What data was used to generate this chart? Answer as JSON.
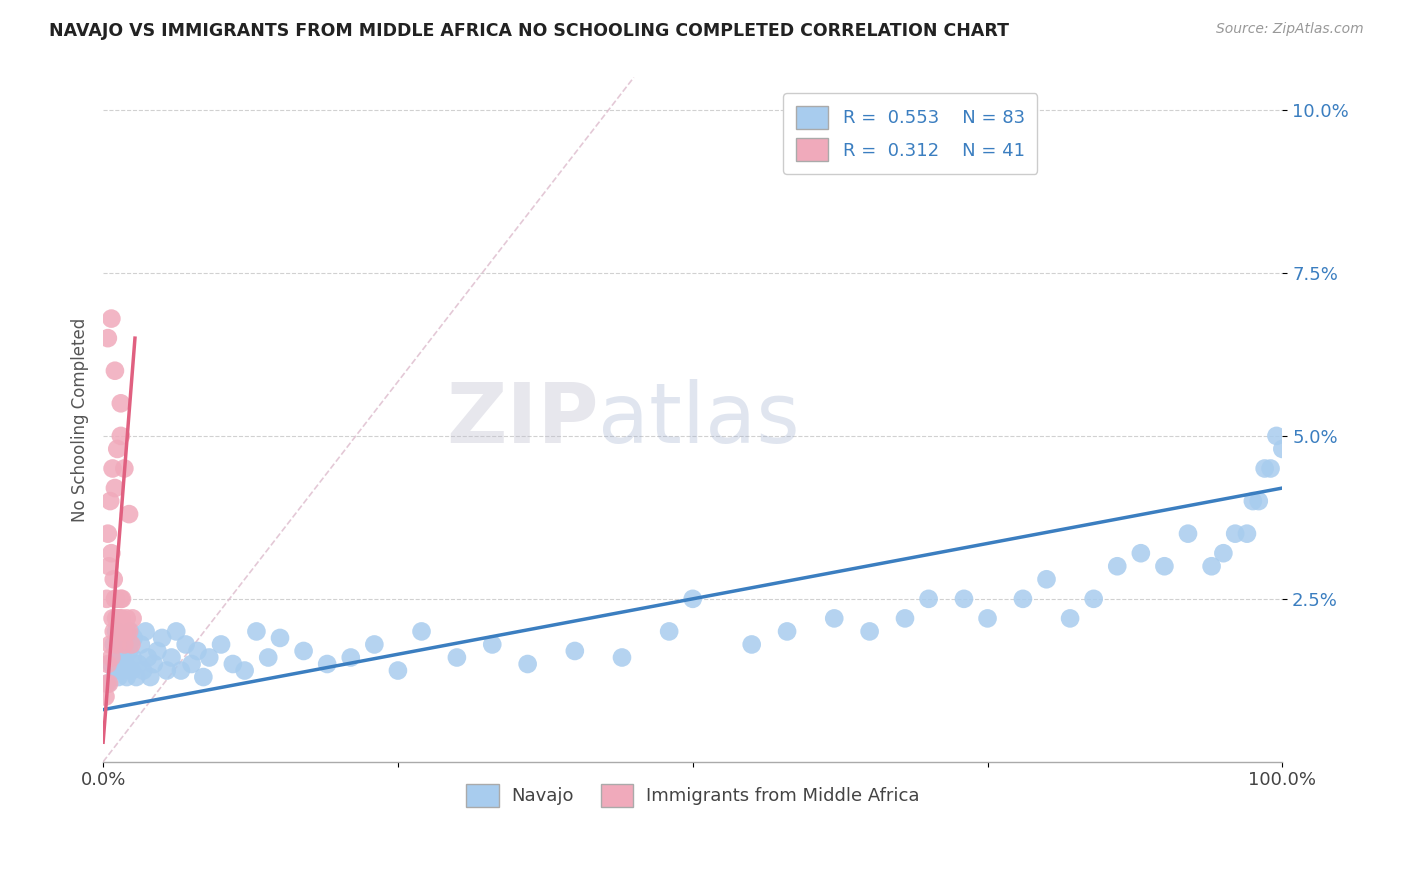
{
  "title": "NAVAJO VS IMMIGRANTS FROM MIDDLE AFRICA NO SCHOOLING COMPLETED CORRELATION CHART",
  "source": "Source: ZipAtlas.com",
  "ylabel": "No Schooling Completed",
  "xlim": [
    0.0,
    1.0
  ],
  "ylim": [
    0.0,
    0.105
  ],
  "ytick_labels": [
    "2.5%",
    "5.0%",
    "7.5%",
    "10.0%"
  ],
  "ytick_values": [
    0.025,
    0.05,
    0.075,
    0.1
  ],
  "watermark_zip": "ZIP",
  "watermark_atlas": "atlas",
  "navajo_color": "#A8CCEE",
  "immigrants_color": "#F0AABB",
  "navajo_line_color": "#3B7EC0",
  "immigrants_line_color": "#E06080",
  "title_color": "#222222",
  "source_color": "#999999",
  "legend_navajo_label": "R =  0.553    N = 83",
  "legend_imm_label": "R =  0.312    N = 41",
  "navajo_x": [
    0.004,
    0.007,
    0.009,
    0.01,
    0.011,
    0.012,
    0.013,
    0.014,
    0.015,
    0.016,
    0.017,
    0.018,
    0.019,
    0.02,
    0.022,
    0.023,
    0.024,
    0.025,
    0.026,
    0.028,
    0.03,
    0.032,
    0.034,
    0.036,
    0.038,
    0.04,
    0.043,
    0.046,
    0.05,
    0.054,
    0.058,
    0.062,
    0.066,
    0.07,
    0.075,
    0.08,
    0.085,
    0.09,
    0.1,
    0.11,
    0.12,
    0.13,
    0.14,
    0.15,
    0.17,
    0.19,
    0.21,
    0.23,
    0.25,
    0.27,
    0.3,
    0.33,
    0.36,
    0.4,
    0.44,
    0.48,
    0.5,
    0.55,
    0.58,
    0.62,
    0.65,
    0.68,
    0.7,
    0.73,
    0.75,
    0.78,
    0.8,
    0.82,
    0.84,
    0.86,
    0.88,
    0.9,
    0.92,
    0.94,
    0.95,
    0.96,
    0.97,
    0.975,
    0.98,
    0.985,
    0.99,
    0.995,
    1.0
  ],
  "navajo_y": [
    0.012,
    0.015,
    0.018,
    0.014,
    0.02,
    0.016,
    0.013,
    0.017,
    0.019,
    0.014,
    0.016,
    0.018,
    0.015,
    0.013,
    0.017,
    0.02,
    0.014,
    0.016,
    0.019,
    0.013,
    0.015,
    0.018,
    0.014,
    0.02,
    0.016,
    0.013,
    0.015,
    0.017,
    0.019,
    0.014,
    0.016,
    0.02,
    0.014,
    0.018,
    0.015,
    0.017,
    0.013,
    0.016,
    0.018,
    0.015,
    0.014,
    0.02,
    0.016,
    0.019,
    0.017,
    0.015,
    0.016,
    0.018,
    0.014,
    0.02,
    0.016,
    0.018,
    0.015,
    0.017,
    0.016,
    0.02,
    0.025,
    0.018,
    0.02,
    0.022,
    0.02,
    0.022,
    0.025,
    0.025,
    0.022,
    0.025,
    0.028,
    0.022,
    0.025,
    0.03,
    0.032,
    0.03,
    0.035,
    0.03,
    0.032,
    0.035,
    0.035,
    0.04,
    0.04,
    0.045,
    0.045,
    0.05,
    0.048
  ],
  "immigrants_x": [
    0.002,
    0.003,
    0.004,
    0.005,
    0.006,
    0.007,
    0.008,
    0.009,
    0.01,
    0.011,
    0.012,
    0.013,
    0.014,
    0.015,
    0.016,
    0.017,
    0.018,
    0.02,
    0.022,
    0.024,
    0.004,
    0.006,
    0.008,
    0.01,
    0.012,
    0.015,
    0.018,
    0.022,
    0.003,
    0.005,
    0.007,
    0.009,
    0.011,
    0.013,
    0.016,
    0.02,
    0.025,
    0.004,
    0.007,
    0.01,
    0.015
  ],
  "immigrants_y": [
    0.01,
    0.012,
    0.015,
    0.012,
    0.018,
    0.016,
    0.022,
    0.02,
    0.025,
    0.022,
    0.018,
    0.02,
    0.022,
    0.025,
    0.022,
    0.02,
    0.018,
    0.022,
    0.02,
    0.018,
    0.035,
    0.04,
    0.045,
    0.042,
    0.048,
    0.05,
    0.045,
    0.038,
    0.025,
    0.03,
    0.032,
    0.028,
    0.025,
    0.022,
    0.025,
    0.02,
    0.022,
    0.065,
    0.068,
    0.06,
    0.055
  ],
  "navajo_trend_x": [
    0.0,
    1.0
  ],
  "navajo_trend_y": [
    0.008,
    0.042
  ],
  "immigrants_trend_x": [
    0.0,
    0.027
  ],
  "immigrants_trend_y": [
    0.003,
    0.065
  ],
  "diag_trend_x": [
    0.0,
    0.45
  ],
  "diag_trend_y": [
    0.0,
    0.105
  ]
}
